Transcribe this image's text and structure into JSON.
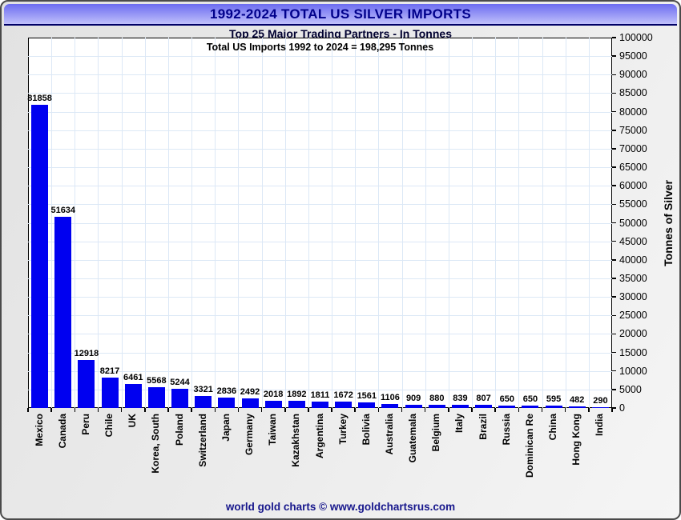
{
  "window": {
    "title": "1992-2024 TOTAL US SILVER IMPORTS",
    "subtitle": "Top 25 Major Trading Partners - In Tonnes",
    "footer": "world gold charts © www.goldchartsrus.com"
  },
  "chart_data": {
    "type": "bar",
    "title": "1992-2024 TOTAL US SILVER IMPORTS",
    "subtitle": "Top 25 Major Trading Partners - In Tonnes",
    "annotation": "Total US Imports 1992 to 2024 = 198,295 Tonnes",
    "categories": [
      "Mexico",
      "Canada",
      "Peru",
      "Chile",
      "UK",
      "Korea, South",
      "Poland",
      "Switzerland",
      "Japan",
      "Germany",
      "Taiwan",
      "Kazakhstan",
      "Argentina",
      "Turkey",
      "Bolivia",
      "Australia",
      "Guatemala",
      "Belgium",
      "Italy",
      "Brazil",
      "Russia",
      "Dominican Re",
      "China",
      "Hong Kong",
      "India"
    ],
    "values": [
      81858,
      51634,
      12918,
      8217,
      6461,
      5568,
      5244,
      3321,
      2836,
      2492,
      2018,
      1892,
      1811,
      1672,
      1561,
      1106,
      909,
      880,
      839,
      807,
      650,
      650,
      595,
      482,
      290
    ],
    "ylabel": "Tonnes of Silver",
    "xlabel": "",
    "ylim": [
      0,
      100000
    ],
    "ytick_step": 5000,
    "grid": true,
    "legend_position": "none",
    "bar_color": "#0000f0",
    "grid_color": "#dce8f6"
  }
}
